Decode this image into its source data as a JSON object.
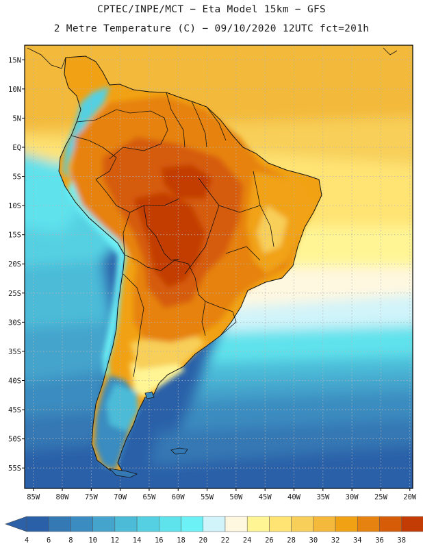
{
  "title": {
    "line1": "CPTEC/INPE/MCT −  Eta Model 15km − GFS",
    "line2": "2 Metre Temperature (C) − 09/10/2020 12UTC fct=201h"
  },
  "axes": {
    "lat_labels": [
      "15N",
      "10N",
      "5N",
      "EQ",
      "5S",
      "10S",
      "15S",
      "20S",
      "25S",
      "30S",
      "35S",
      "40S",
      "45S",
      "50S",
      "55S"
    ],
    "lat_values": [
      15,
      10,
      5,
      0,
      -5,
      -10,
      -15,
      -20,
      -25,
      -30,
      -35,
      -40,
      -45,
      -50,
      -55
    ],
    "lon_labels": [
      "85W",
      "80W",
      "75W",
      "70W",
      "65W",
      "60W",
      "55W",
      "50W",
      "45W",
      "40W",
      "35W",
      "30W",
      "25W",
      "20W"
    ],
    "lon_values": [
      -85,
      -80,
      -75,
      -70,
      -65,
      -60,
      -55,
      -50,
      -45,
      -40,
      -35,
      -30,
      -25,
      -20
    ],
    "lon_range": [
      -86.5,
      -19.5
    ],
    "lat_range": [
      -58.5,
      17.5
    ]
  },
  "legend": {
    "labels": [
      "4",
      "6",
      "8",
      "10",
      "12",
      "14",
      "16",
      "18",
      "20",
      "22",
      "24",
      "26",
      "28",
      "30",
      "32",
      "34",
      "36",
      "38"
    ],
    "colors": [
      "#2a60a8",
      "#3478b4",
      "#3b8cc0",
      "#44a4cc",
      "#4cbbd8",
      "#55d0e2",
      "#5ee2ec",
      "#6cf2f6",
      "#d0f4fa",
      "#fff8e0",
      "#fff594",
      "#ffe373",
      "#f8cf58",
      "#f4b83a",
      "#f1a214",
      "#e6820f",
      "#d65c08",
      "#c33c06"
    ],
    "low_arrow_color": "#2c61a8",
    "high_arrow_color": "#bd3b0a"
  },
  "colors": {
    "border": "#000000",
    "grid": "#b4b4b4"
  }
}
